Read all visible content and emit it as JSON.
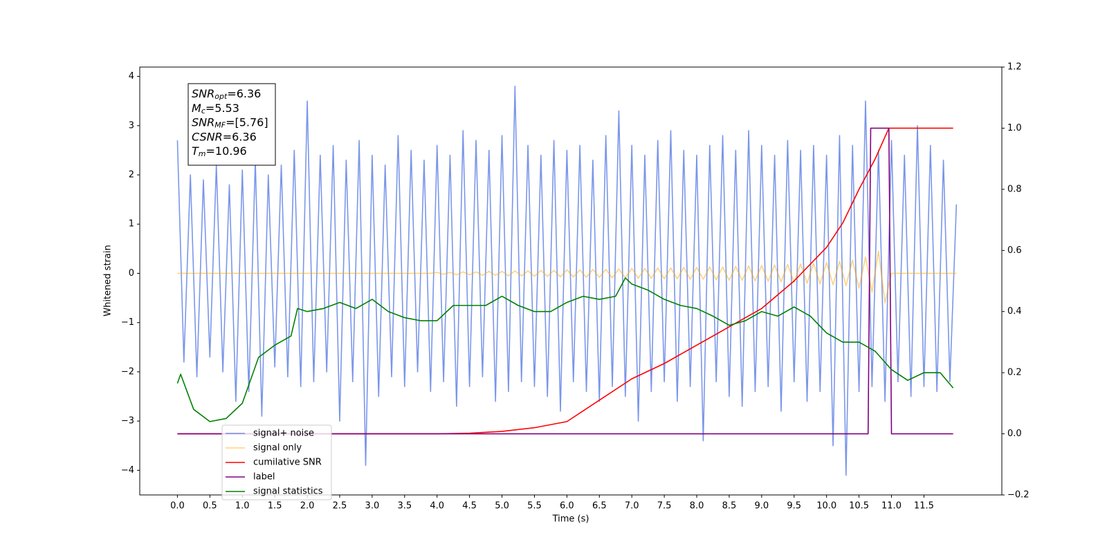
{
  "chart_data": {
    "type": "line",
    "x_label": "Time (s)",
    "y_label": "Whitened strain",
    "xlim": [
      -0.58,
      12.7
    ],
    "ylim": [
      -4.5,
      4.19
    ],
    "y2lim": [
      -0.2,
      1.2
    ],
    "xticks": [
      {
        "value": 0,
        "label": "0.0"
      },
      0.5,
      {
        "value": 1,
        "label": "1.0"
      },
      1.5,
      {
        "value": 2,
        "label": "2.0"
      },
      2.5,
      {
        "value": 3,
        "label": "3.0"
      },
      3.5,
      {
        "value": 4,
        "label": "4.0"
      },
      4.5,
      {
        "value": 5,
        "label": "5.0"
      },
      5.5,
      {
        "value": 6,
        "label": "6.0"
      },
      6.5,
      {
        "value": 7,
        "label": "7.0"
      },
      7.5,
      {
        "value": 8,
        "label": "8.0"
      },
      8.5,
      {
        "value": 9,
        "label": "9.0"
      },
      9.5,
      {
        "value": 10,
        "label": "10.0"
      },
      10.5,
      {
        "value": 11,
        "label": "11.0"
      },
      11.5
    ],
    "yticks": [
      {
        "value": -4,
        "label": "−4"
      },
      {
        "value": -3,
        "label": "−3"
      },
      {
        "value": -2,
        "label": "−2"
      },
      {
        "value": -1,
        "label": "−1"
      },
      0,
      1,
      2,
      3,
      4
    ],
    "y2ticks": [
      {
        "value": -0.2,
        "label": "−0.2"
      },
      {
        "value": 0,
        "label": "0.0"
      },
      0.2,
      0.4,
      0.6,
      0.8,
      {
        "value": 1,
        "label": "1.0"
      },
      1.2
    ],
    "x": [
      0,
      0.1,
      0.2,
      0.3,
      0.4,
      0.5,
      0.6,
      0.7,
      0.8,
      0.9,
      1,
      1.1,
      1.2,
      1.3,
      1.4,
      1.5,
      1.6,
      1.7,
      1.8,
      1.9,
      2,
      2.1,
      2.2,
      2.3,
      2.4,
      2.5,
      2.6,
      2.7,
      2.8,
      2.9,
      3,
      3.1,
      3.2,
      3.3,
      3.4,
      3.5,
      3.6,
      3.7,
      3.8,
      3.9,
      4,
      4.1,
      4.2,
      4.3,
      4.4,
      4.5,
      4.6,
      4.7,
      4.8,
      4.9,
      5,
      5.1,
      5.2,
      5.3,
      5.4,
      5.5,
      5.6,
      5.7,
      5.8,
      5.9,
      6,
      6.1,
      6.2,
      6.3,
      6.4,
      6.5,
      6.6,
      6.7,
      6.8,
      6.9,
      7,
      7.1,
      7.2,
      7.3,
      7.4,
      7.5,
      7.6,
      7.7,
      7.8,
      7.9,
      8,
      8.1,
      8.2,
      8.3,
      8.4,
      8.5,
      8.6,
      8.7,
      8.8,
      8.9,
      9,
      9.1,
      9.2,
      9.3,
      9.4,
      9.5,
      9.6,
      9.7,
      9.8,
      9.9,
      10,
      10.1,
      10.2,
      10.3,
      10.4,
      10.5,
      10.6,
      10.7,
      10.8,
      10.9,
      11,
      11.1,
      11.2,
      11.3,
      11.4,
      11.5,
      11.6,
      11.7,
      11.8,
      11.9,
      12
    ],
    "series": [
      {
        "name": "signal+ noise",
        "color": "#4169e1",
        "opacity": 0.7,
        "values": [
          2.7,
          -1.8,
          2.0,
          -2.1,
          1.9,
          -1.7,
          2.2,
          -2.0,
          1.8,
          -2.6,
          2.1,
          -2.4,
          2.3,
          -2.9,
          2.0,
          -1.9,
          2.2,
          -2.1,
          2.5,
          -2.3,
          3.5,
          -2.2,
          2.4,
          -2.0,
          2.6,
          -3.0,
          2.3,
          -2.2,
          2.7,
          -3.9,
          2.4,
          -2.5,
          2.2,
          -2.1,
          2.8,
          -2.3,
          2.5,
          -2.0,
          2.3,
          -2.4,
          2.6,
          -2.2,
          2.4,
          -2.7,
          2.9,
          -2.3,
          2.7,
          -2.1,
          2.5,
          -2.6,
          2.8,
          -2.4,
          3.8,
          -2.2,
          2.6,
          -2.3,
          2.4,
          -2.5,
          2.7,
          -2.8,
          2.5,
          -2.2,
          2.6,
          -2.4,
          2.3,
          -2.6,
          2.8,
          -2.3,
          3.3,
          -2.5,
          2.6,
          -3.0,
          2.4,
          -2.4,
          2.7,
          -2.2,
          2.9,
          -2.6,
          2.5,
          -2.3,
          2.4,
          -3.4,
          2.6,
          -2.2,
          2.8,
          -2.5,
          2.5,
          -2.7,
          2.9,
          -2.4,
          2.6,
          -2.3,
          2.4,
          -2.8,
          2.7,
          -2.2,
          2.5,
          -2.6,
          2.6,
          -2.4,
          2.4,
          -3.5,
          2.8,
          -4.1,
          2.6,
          -2.4,
          3.5,
          -2.3,
          2.5,
          -2.6,
          2.7,
          -2.2,
          2.4,
          -2.5,
          3.0,
          -2.3,
          2.6,
          -2.4,
          2.3,
          -2.2,
          1.4
        ]
      },
      {
        "name": "signal only",
        "color": "#ffa500",
        "opacity": 0.5,
        "values": [
          0,
          0,
          0,
          0,
          0,
          0,
          0,
          0,
          0,
          0,
          0,
          0,
          0,
          0,
          0,
          0,
          0,
          0,
          0,
          0,
          0,
          0,
          0,
          0,
          0,
          0,
          0,
          0,
          0,
          0,
          0,
          0,
          0,
          0,
          0,
          0,
          0,
          0,
          0,
          0,
          0.02,
          -0.02,
          0.02,
          -0.03,
          0.03,
          -0.03,
          0.03,
          -0.04,
          0.04,
          -0.04,
          0.04,
          -0.05,
          0.05,
          -0.05,
          0.05,
          -0.06,
          0.06,
          -0.06,
          0.06,
          -0.07,
          0.07,
          -0.07,
          0.07,
          -0.08,
          0.08,
          -0.08,
          0.08,
          -0.09,
          0.09,
          -0.09,
          0.1,
          -0.1,
          0.1,
          -0.1,
          0.11,
          -0.11,
          0.11,
          -0.11,
          0.12,
          -0.12,
          0.12,
          -0.12,
          0.13,
          -0.13,
          0.13,
          -0.14,
          0.14,
          -0.14,
          0.15,
          -0.15,
          0.16,
          -0.16,
          0.17,
          -0.17,
          0.18,
          -0.18,
          0.19,
          -0.2,
          0.2,
          -0.21,
          0.22,
          -0.23,
          0.24,
          -0.25,
          0.27,
          -0.3,
          0.33,
          -0.38,
          0.45,
          -0.6,
          0,
          0,
          0,
          0,
          0,
          0,
          0,
          0,
          0,
          0,
          0
        ]
      },
      {
        "name": "cumilative SNR",
        "color": "#ff0000",
        "axis": "y2",
        "x": [
          0,
          4,
          4.5,
          5,
          5.5,
          6,
          6.5,
          7,
          7.5,
          8,
          8.5,
          9,
          9.5,
          10,
          10.25,
          10.5,
          10.75,
          10.96,
          11,
          11.95
        ],
        "values": [
          0,
          0,
          0.002,
          0.008,
          0.02,
          0.04,
          0.11,
          0.18,
          0.23,
          0.29,
          0.35,
          0.41,
          0.5,
          0.61,
          0.69,
          0.8,
          0.9,
          1,
          1,
          1
        ]
      },
      {
        "name": "label",
        "color": "#800080",
        "axis": "y2",
        "x": [
          0,
          10.64,
          10.68,
          10.96,
          11.0,
          11.95
        ],
        "values": [
          0,
          0,
          1,
          1,
          0,
          0
        ]
      },
      {
        "name": "signal statistics",
        "color": "#008000",
        "axis": "y2",
        "x": [
          0,
          0.05,
          0.25,
          0.5,
          0.75,
          1,
          1.25,
          1.5,
          1.75,
          1.85,
          2,
          2.25,
          2.5,
          2.75,
          3,
          3.25,
          3.5,
          3.75,
          4,
          4.25,
          4.5,
          4.75,
          5,
          5.25,
          5.5,
          5.75,
          6,
          6.25,
          6.5,
          6.75,
          6.9,
          7,
          7.25,
          7.5,
          7.75,
          8,
          8.25,
          8.5,
          8.75,
          9,
          9.25,
          9.5,
          9.75,
          10,
          10.25,
          10.5,
          10.75,
          11,
          11.25,
          11.5,
          11.75,
          11.95
        ],
        "values": [
          0.165,
          0.195,
          0.08,
          0.04,
          0.05,
          0.1,
          0.25,
          0.29,
          0.32,
          0.41,
          0.4,
          0.41,
          0.43,
          0.41,
          0.44,
          0.4,
          0.38,
          0.37,
          0.37,
          0.42,
          0.42,
          0.42,
          0.45,
          0.42,
          0.4,
          0.4,
          0.43,
          0.45,
          0.44,
          0.45,
          0.51,
          0.49,
          0.47,
          0.44,
          0.42,
          0.41,
          0.385,
          0.355,
          0.37,
          0.4,
          0.385,
          0.415,
          0.385,
          0.33,
          0.3,
          0.3,
          0.27,
          0.21,
          0.175,
          0.2,
          0.2,
          0.15
        ]
      }
    ],
    "annotations": [
      {
        "symbol": "SNR",
        "sub": "opt",
        "text": "=6.36"
      },
      {
        "symbol": "M",
        "sub": "c",
        "text": "=5.53"
      },
      {
        "symbol": "SNR",
        "sub": "MF",
        "text": "=[5.76]"
      },
      {
        "symbol": "CSNR",
        "text": "=6.36"
      },
      {
        "symbol": "T",
        "sub": "m",
        "text": "=10.96"
      }
    ]
  }
}
